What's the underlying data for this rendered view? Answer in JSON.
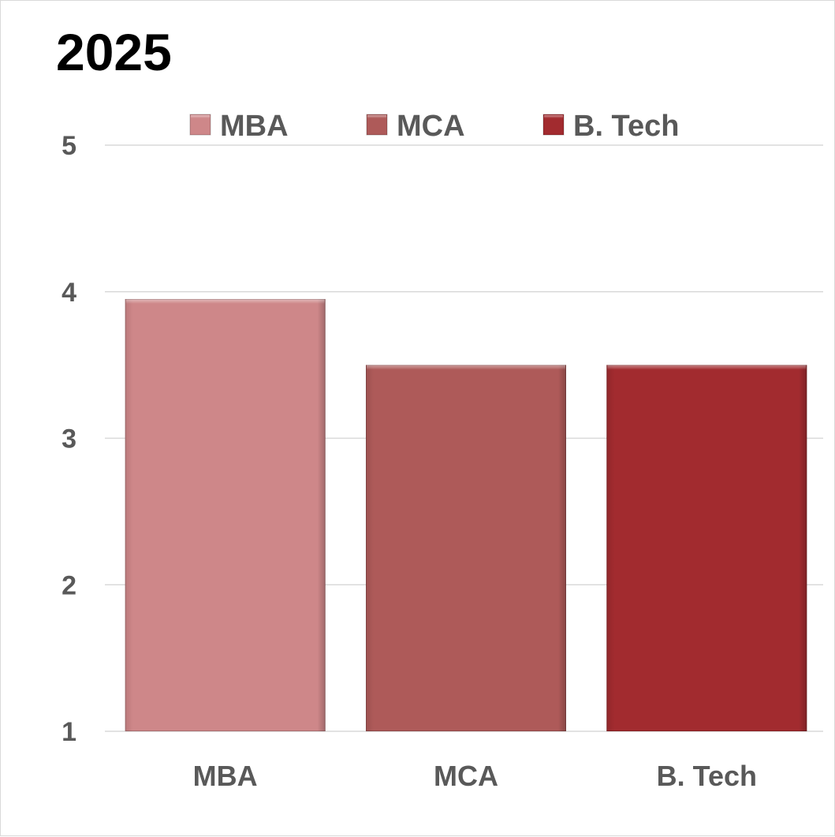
{
  "chart_data": {
    "type": "bar",
    "title": "2025",
    "xlabel": "",
    "ylabel": "",
    "categories": [
      "MBA",
      "MCA",
      "B. Tech"
    ],
    "values": [
      3.95,
      3.5,
      3.5
    ],
    "colors": [
      "#ce8789",
      "#ae5a59",
      "#a22b2f"
    ],
    "ylim": [
      1,
      5
    ],
    "yticks": [
      "1",
      "2",
      "3",
      "4",
      "5"
    ],
    "grid": true,
    "legend": {
      "position": "top",
      "entries": [
        "MBA",
        "MCA",
        "B. Tech"
      ]
    }
  }
}
